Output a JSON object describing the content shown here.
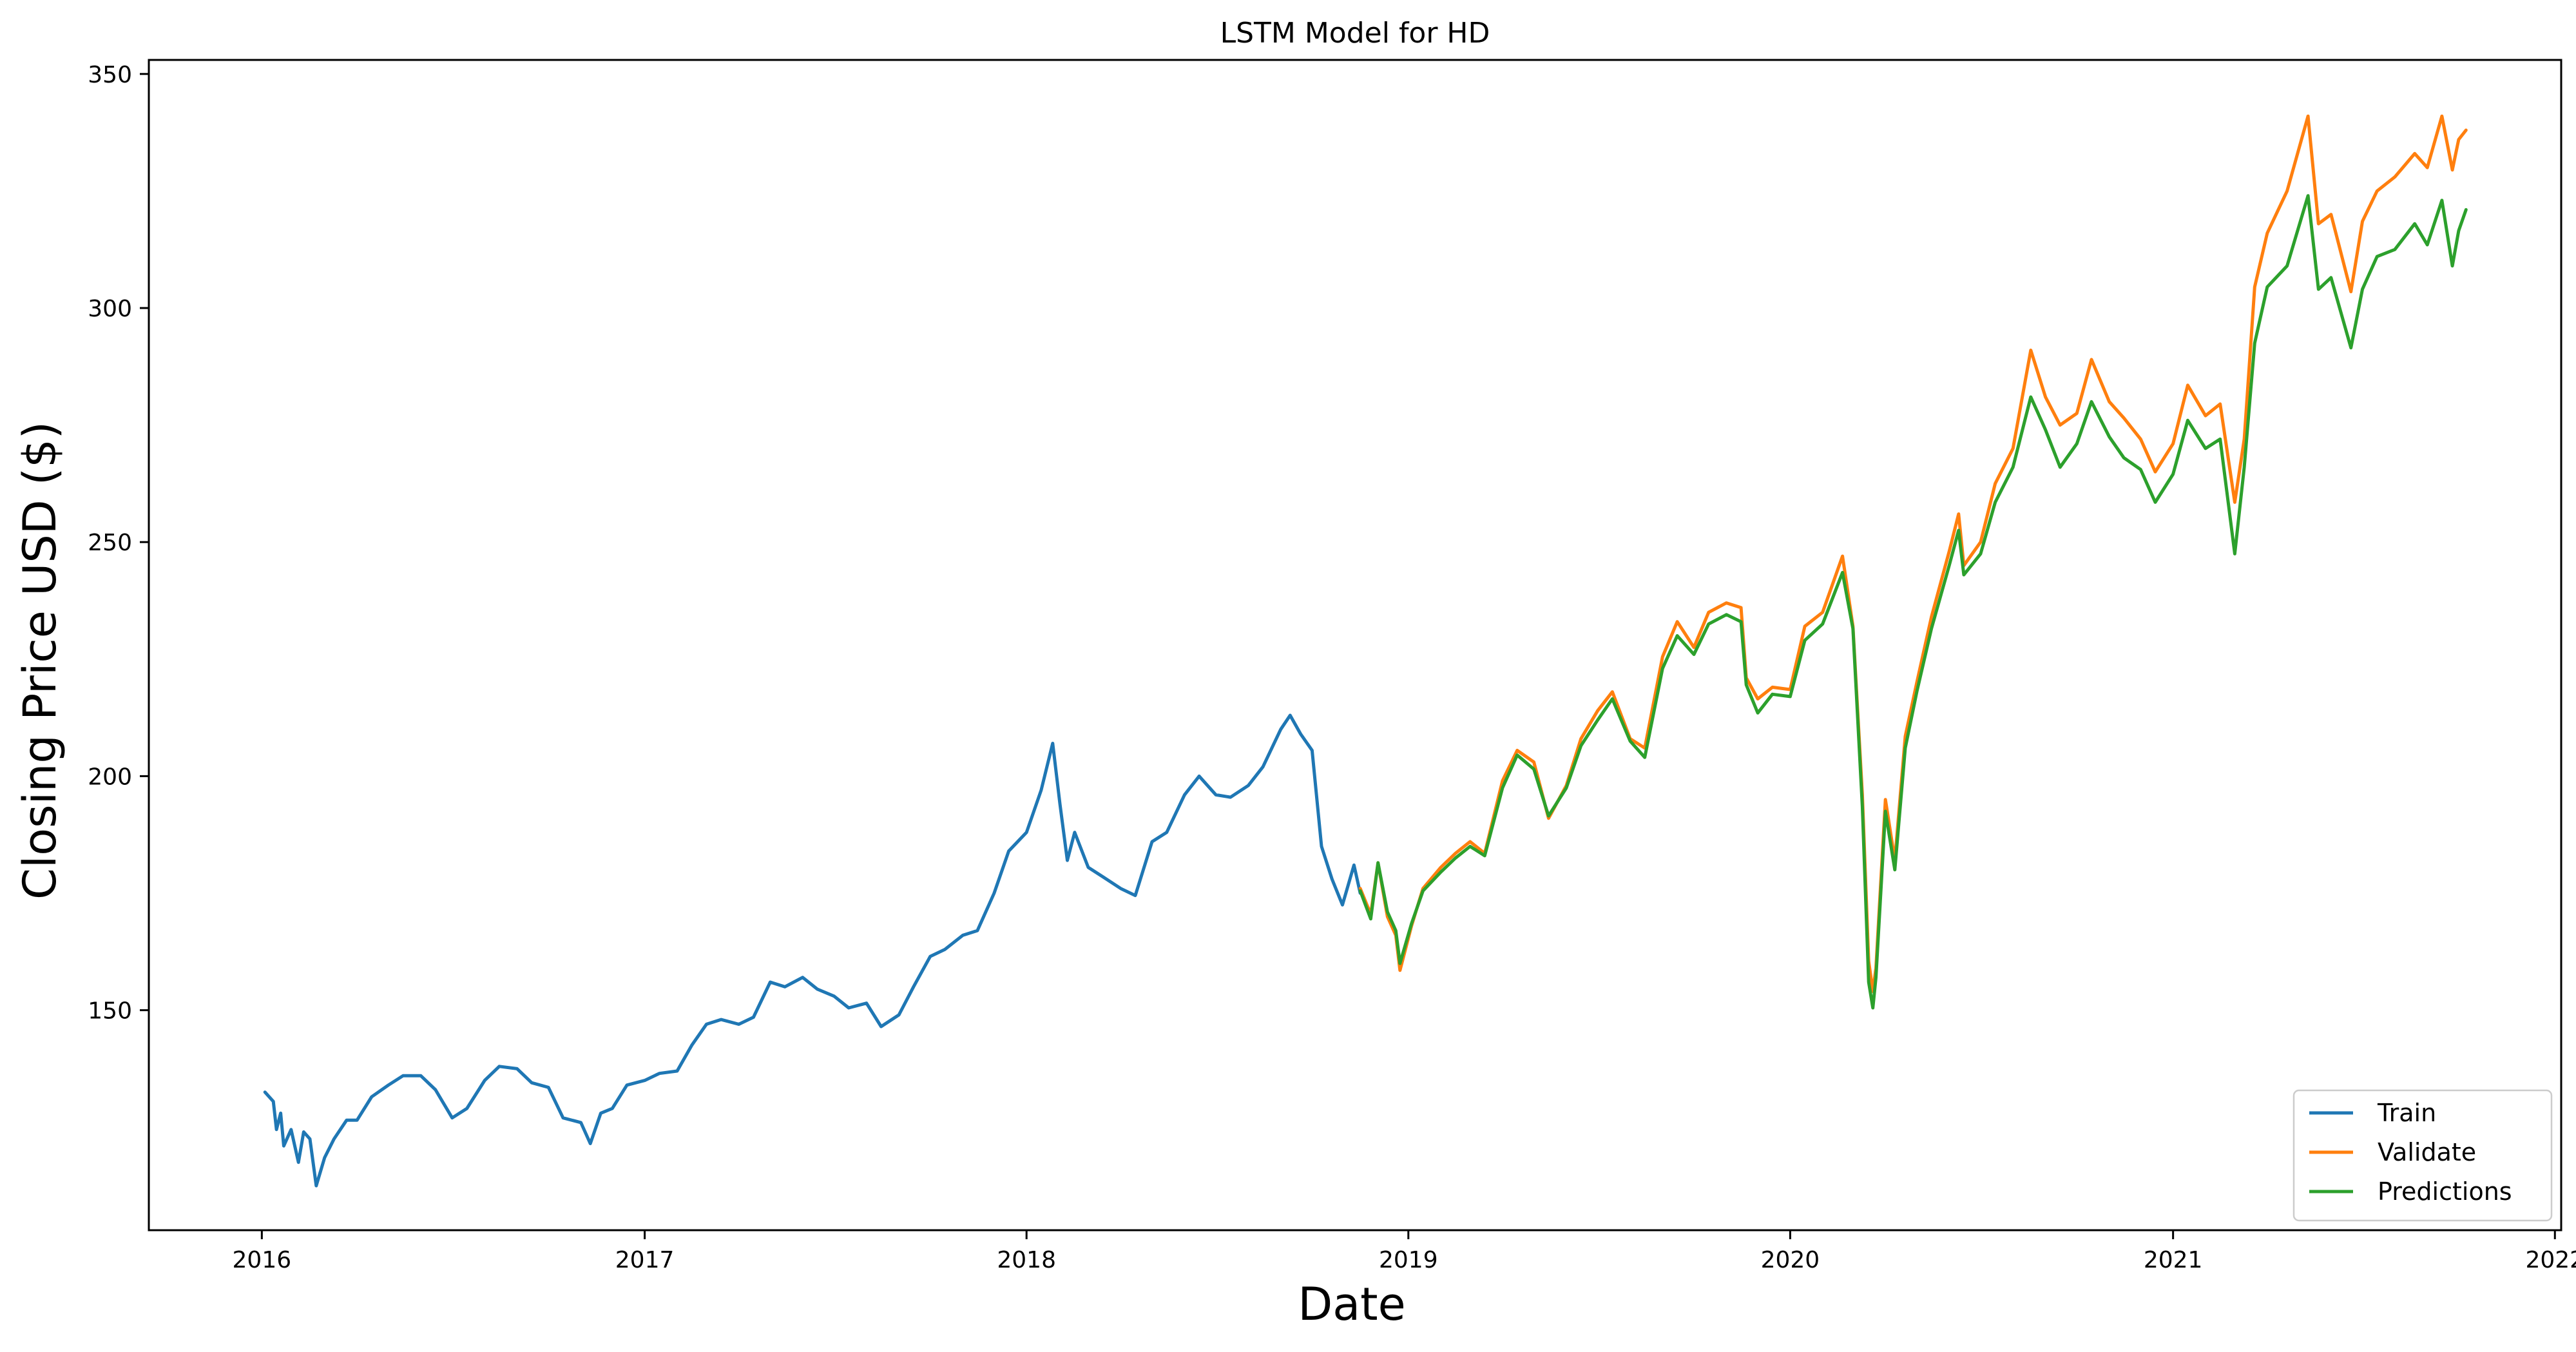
{
  "chart_data": {
    "type": "line",
    "title": "LSTM Model for HD",
    "xlabel": "Date",
    "ylabel": "Closing Price USD ($)",
    "x_ticks": [
      "2016",
      "2017",
      "2018",
      "2019",
      "2020",
      "2021",
      "2022"
    ],
    "y_ticks": [
      "150",
      "200",
      "250",
      "300",
      "350"
    ],
    "xlim": [
      "2015-09-15",
      "2022-01-07"
    ],
    "ylim": [
      103,
      353
    ],
    "grid": false,
    "legend_position": "bottom-right",
    "series": [
      {
        "name": "Train",
        "color": "#1f77b4",
        "points": [
          [
            "2016-01-04",
            132.5
          ],
          [
            "2016-01-12",
            130.5
          ],
          [
            "2016-01-15",
            124.5
          ],
          [
            "2016-01-19",
            128.0
          ],
          [
            "2016-01-22",
            121.0
          ],
          [
            "2016-01-29",
            124.5
          ],
          [
            "2016-02-05",
            117.5
          ],
          [
            "2016-02-10",
            124.0
          ],
          [
            "2016-02-16",
            122.5
          ],
          [
            "2016-02-22",
            112.5
          ],
          [
            "2016-03-01",
            118.5
          ],
          [
            "2016-03-10",
            122.5
          ],
          [
            "2016-03-22",
            126.5
          ],
          [
            "2016-04-01",
            126.5
          ],
          [
            "2016-04-15",
            131.5
          ],
          [
            "2016-05-01",
            134.0
          ],
          [
            "2016-05-15",
            136.0
          ],
          [
            "2016-06-01",
            136.0
          ],
          [
            "2016-06-15",
            133.0
          ],
          [
            "2016-07-01",
            127.0
          ],
          [
            "2016-07-15",
            129.0
          ],
          [
            "2016-08-01",
            135.0
          ],
          [
            "2016-08-15",
            138.0
          ],
          [
            "2016-09-01",
            137.5
          ],
          [
            "2016-09-15",
            134.5
          ],
          [
            "2016-10-01",
            133.5
          ],
          [
            "2016-10-15",
            127.0
          ],
          [
            "2016-11-01",
            126.0
          ],
          [
            "2016-11-10",
            121.5
          ],
          [
            "2016-11-20",
            128.0
          ],
          [
            "2016-12-01",
            129.0
          ],
          [
            "2016-12-15",
            134.0
          ],
          [
            "2017-01-01",
            135.0
          ],
          [
            "2017-01-15",
            136.5
          ],
          [
            "2017-02-01",
            137.0
          ],
          [
            "2017-02-15",
            142.5
          ],
          [
            "2017-03-01",
            147.0
          ],
          [
            "2017-03-15",
            148.0
          ],
          [
            "2017-04-01",
            147.0
          ],
          [
            "2017-04-15",
            148.5
          ],
          [
            "2017-05-01",
            156.0
          ],
          [
            "2017-05-15",
            155.0
          ],
          [
            "2017-06-01",
            157.0
          ],
          [
            "2017-06-15",
            154.5
          ],
          [
            "2017-07-01",
            153.0
          ],
          [
            "2017-07-15",
            150.5
          ],
          [
            "2017-08-01",
            151.5
          ],
          [
            "2017-08-15",
            146.5
          ],
          [
            "2017-09-01",
            149.0
          ],
          [
            "2017-09-15",
            155.0
          ],
          [
            "2017-10-01",
            161.5
          ],
          [
            "2017-10-15",
            163.0
          ],
          [
            "2017-11-01",
            166.0
          ],
          [
            "2017-11-15",
            167.0
          ],
          [
            "2017-12-01",
            175.0
          ],
          [
            "2017-12-15",
            184.0
          ],
          [
            "2018-01-01",
            188.0
          ],
          [
            "2018-01-15",
            197.0
          ],
          [
            "2018-01-26",
            207.0
          ],
          [
            "2018-02-02",
            194.0
          ],
          [
            "2018-02-09",
            182.0
          ],
          [
            "2018-02-16",
            188.0
          ],
          [
            "2018-03-01",
            180.5
          ],
          [
            "2018-03-15",
            178.5
          ],
          [
            "2018-04-01",
            176.0
          ],
          [
            "2018-04-15",
            174.5
          ],
          [
            "2018-05-01",
            186.0
          ],
          [
            "2018-05-15",
            188.0
          ],
          [
            "2018-06-01",
            196.0
          ],
          [
            "2018-06-15",
            200.0
          ],
          [
            "2018-07-01",
            196.0
          ],
          [
            "2018-07-15",
            195.5
          ],
          [
            "2018-08-01",
            198.0
          ],
          [
            "2018-08-15",
            202.0
          ],
          [
            "2018-09-01",
            210.0
          ],
          [
            "2018-09-10",
            213.0
          ],
          [
            "2018-09-20",
            209.0
          ],
          [
            "2018-10-01",
            205.5
          ],
          [
            "2018-10-10",
            185.0
          ],
          [
            "2018-10-20",
            178.0
          ],
          [
            "2018-10-30",
            172.5
          ],
          [
            "2018-11-10",
            181.0
          ],
          [
            "2018-11-16",
            175.0
          ]
        ]
      },
      {
        "name": "Validate",
        "color": "#ff7f0e",
        "points": [
          [
            "2018-11-16",
            176.0
          ],
          [
            "2018-11-26",
            170.5
          ],
          [
            "2018-12-03",
            181.5
          ],
          [
            "2018-12-12",
            170.0
          ],
          [
            "2018-12-20",
            166.0
          ],
          [
            "2018-12-24",
            158.5
          ],
          [
            "2019-01-04",
            168.0
          ],
          [
            "2019-01-15",
            176.0
          ],
          [
            "2019-02-01",
            180.5
          ],
          [
            "2019-02-15",
            183.5
          ],
          [
            "2019-03-01",
            186.0
          ],
          [
            "2019-03-15",
            183.5
          ],
          [
            "2019-04-01",
            199.0
          ],
          [
            "2019-04-15",
            205.5
          ],
          [
            "2019-05-01",
            203.0
          ],
          [
            "2019-05-15",
            191.0
          ],
          [
            "2019-06-01",
            198.0
          ],
          [
            "2019-06-15",
            208.0
          ],
          [
            "2019-07-01",
            214.0
          ],
          [
            "2019-07-15",
            218.0
          ],
          [
            "2019-08-01",
            208.0
          ],
          [
            "2019-08-15",
            206.0
          ],
          [
            "2019-09-01",
            225.5
          ],
          [
            "2019-09-15",
            233.0
          ],
          [
            "2019-10-01",
            227.5
          ],
          [
            "2019-10-15",
            235.0
          ],
          [
            "2019-11-01",
            237.0
          ],
          [
            "2019-11-15",
            236.0
          ],
          [
            "2019-11-20",
            221.0
          ],
          [
            "2019-12-01",
            216.5
          ],
          [
            "2019-12-15",
            219.0
          ],
          [
            "2020-01-01",
            218.5
          ],
          [
            "2020-01-15",
            232.0
          ],
          [
            "2020-02-01",
            235.0
          ],
          [
            "2020-02-20",
            247.0
          ],
          [
            "2020-03-01",
            232.0
          ],
          [
            "2020-03-10",
            196.0
          ],
          [
            "2020-03-16",
            160.5
          ],
          [
            "2020-03-20",
            154.0
          ],
          [
            "2020-03-23",
            159.0
          ],
          [
            "2020-04-01",
            195.0
          ],
          [
            "2020-04-10",
            182.0
          ],
          [
            "2020-04-20",
            208.5
          ],
          [
            "2020-05-01",
            220.0
          ],
          [
            "2020-05-15",
            234.0
          ],
          [
            "2020-06-01",
            248.0
          ],
          [
            "2020-06-10",
            256.0
          ],
          [
            "2020-06-15",
            245.0
          ],
          [
            "2020-07-01",
            250.0
          ],
          [
            "2020-07-15",
            262.5
          ],
          [
            "2020-08-01",
            270.0
          ],
          [
            "2020-08-18",
            291.0
          ],
          [
            "2020-09-01",
            281.0
          ],
          [
            "2020-09-15",
            275.0
          ],
          [
            "2020-10-01",
            277.5
          ],
          [
            "2020-10-15",
            289.0
          ],
          [
            "2020-11-01",
            280.0
          ],
          [
            "2020-11-15",
            276.5
          ],
          [
            "2020-12-01",
            272.0
          ],
          [
            "2020-12-15",
            265.0
          ],
          [
            "2021-01-01",
            271.0
          ],
          [
            "2021-01-15",
            283.5
          ],
          [
            "2021-02-01",
            277.0
          ],
          [
            "2021-02-15",
            279.5
          ],
          [
            "2021-03-01",
            258.5
          ],
          [
            "2021-03-10",
            272.0
          ],
          [
            "2021-03-20",
            304.5
          ],
          [
            "2021-04-01",
            316.0
          ],
          [
            "2021-04-20",
            325.0
          ],
          [
            "2021-05-10",
            341.0
          ],
          [
            "2021-05-20",
            318.0
          ],
          [
            "2021-06-01",
            320.0
          ],
          [
            "2021-06-20",
            303.5
          ],
          [
            "2021-07-01",
            318.5
          ],
          [
            "2021-07-15",
            325.0
          ],
          [
            "2021-08-01",
            328.0
          ],
          [
            "2021-08-20",
            333.0
          ],
          [
            "2021-09-01",
            330.0
          ],
          [
            "2021-09-15",
            341.0
          ],
          [
            "2021-09-25",
            329.5
          ],
          [
            "2021-10-01",
            336.0
          ],
          [
            "2021-10-08",
            338.0
          ]
        ]
      },
      {
        "name": "Predictions",
        "color": "#2ca02c",
        "points": [
          [
            "2018-11-16",
            175.5
          ],
          [
            "2018-11-26",
            169.5
          ],
          [
            "2018-12-03",
            181.5
          ],
          [
            "2018-12-12",
            171.0
          ],
          [
            "2018-12-20",
            167.0
          ],
          [
            "2018-12-24",
            160.0
          ],
          [
            "2019-01-04",
            168.5
          ],
          [
            "2019-01-15",
            175.5
          ],
          [
            "2019-02-01",
            179.5
          ],
          [
            "2019-02-15",
            182.5
          ],
          [
            "2019-03-01",
            185.0
          ],
          [
            "2019-03-15",
            183.0
          ],
          [
            "2019-04-01",
            197.5
          ],
          [
            "2019-04-15",
            204.5
          ],
          [
            "2019-05-01",
            201.5
          ],
          [
            "2019-05-15",
            191.5
          ],
          [
            "2019-06-01",
            197.5
          ],
          [
            "2019-06-15",
            206.5
          ],
          [
            "2019-07-01",
            212.0
          ],
          [
            "2019-07-15",
            216.5
          ],
          [
            "2019-08-01",
            207.5
          ],
          [
            "2019-08-15",
            204.0
          ],
          [
            "2019-09-01",
            223.0
          ],
          [
            "2019-09-15",
            230.0
          ],
          [
            "2019-10-01",
            226.0
          ],
          [
            "2019-10-15",
            232.5
          ],
          [
            "2019-11-01",
            234.5
          ],
          [
            "2019-11-15",
            233.0
          ],
          [
            "2019-11-20",
            219.5
          ],
          [
            "2019-12-01",
            213.5
          ],
          [
            "2019-12-15",
            217.5
          ],
          [
            "2020-01-01",
            217.0
          ],
          [
            "2020-01-15",
            229.0
          ],
          [
            "2020-02-01",
            232.5
          ],
          [
            "2020-02-20",
            243.5
          ],
          [
            "2020-03-01",
            231.5
          ],
          [
            "2020-03-10",
            193.5
          ],
          [
            "2020-03-16",
            156.0
          ],
          [
            "2020-03-20",
            150.5
          ],
          [
            "2020-03-23",
            157.0
          ],
          [
            "2020-04-01",
            192.5
          ],
          [
            "2020-04-10",
            180.0
          ],
          [
            "2020-04-20",
            206.0
          ],
          [
            "2020-05-01",
            218.0
          ],
          [
            "2020-05-15",
            231.5
          ],
          [
            "2020-06-01",
            245.0
          ],
          [
            "2020-06-10",
            252.5
          ],
          [
            "2020-06-15",
            243.0
          ],
          [
            "2020-07-01",
            247.5
          ],
          [
            "2020-07-15",
            258.5
          ],
          [
            "2020-08-01",
            266.0
          ],
          [
            "2020-08-18",
            281.0
          ],
          [
            "2020-09-01",
            274.0
          ],
          [
            "2020-09-15",
            266.0
          ],
          [
            "2020-10-01",
            271.0
          ],
          [
            "2020-10-15",
            280.0
          ],
          [
            "2020-11-01",
            272.5
          ],
          [
            "2020-11-15",
            268.0
          ],
          [
            "2020-12-01",
            265.5
          ],
          [
            "2020-12-15",
            258.5
          ],
          [
            "2021-01-01",
            264.5
          ],
          [
            "2021-01-15",
            276.0
          ],
          [
            "2021-02-01",
            270.0
          ],
          [
            "2021-02-15",
            272.0
          ],
          [
            "2021-03-01",
            247.5
          ],
          [
            "2021-03-10",
            266.0
          ],
          [
            "2021-03-20",
            292.5
          ],
          [
            "2021-04-01",
            304.5
          ],
          [
            "2021-04-20",
            309.0
          ],
          [
            "2021-05-10",
            324.0
          ],
          [
            "2021-05-20",
            304.0
          ],
          [
            "2021-06-01",
            306.5
          ],
          [
            "2021-06-20",
            291.5
          ],
          [
            "2021-07-01",
            304.0
          ],
          [
            "2021-07-15",
            311.0
          ],
          [
            "2021-08-01",
            312.5
          ],
          [
            "2021-08-20",
            318.0
          ],
          [
            "2021-09-01",
            313.5
          ],
          [
            "2021-09-15",
            323.0
          ],
          [
            "2021-09-25",
            309.0
          ],
          [
            "2021-10-01",
            316.5
          ],
          [
            "2021-10-08",
            321.0
          ]
        ]
      }
    ]
  }
}
